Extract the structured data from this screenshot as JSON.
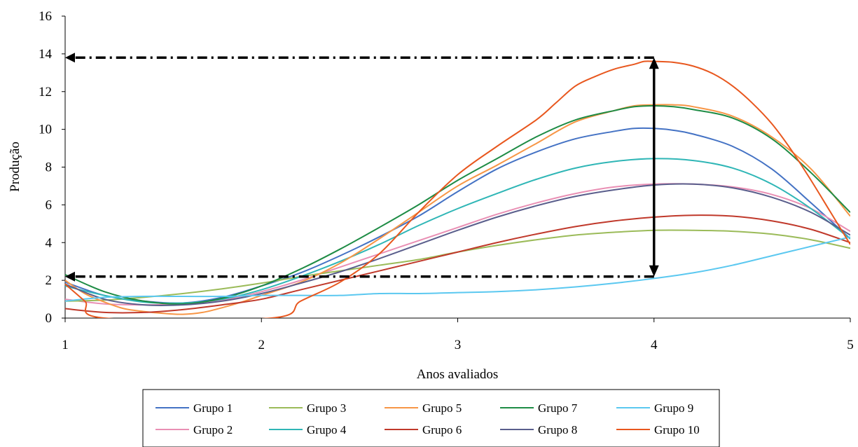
{
  "chart_data": {
    "type": "line",
    "title": "",
    "xlabel": "Anos avaliados",
    "ylabel": "Produção",
    "xlim": [
      1,
      5
    ],
    "ylim": [
      0,
      16
    ],
    "xticks": [
      1,
      2,
      3,
      4,
      5
    ],
    "yticks": [
      0,
      2,
      4,
      6,
      8,
      10,
      12,
      14,
      16
    ],
    "grid": false,
    "legend_position": "bottom",
    "series": [
      {
        "name": "Grupo 1",
        "color": "#4472C4",
        "x": [
          1,
          1.2,
          1.4,
          1.6,
          1.8,
          2,
          2.2,
          2.4,
          2.6,
          2.8,
          3,
          3.2,
          3.4,
          3.6,
          3.8,
          3.9,
          4,
          4.1,
          4.2,
          4.4,
          4.6,
          4.8,
          5
        ],
        "y": [
          1.9,
          1.2,
          0.9,
          0.8,
          1.1,
          1.7,
          2.4,
          3.3,
          4.3,
          5.4,
          6.7,
          7.9,
          8.8,
          9.5,
          9.9,
          10.05,
          10.05,
          9.95,
          9.75,
          9.1,
          7.9,
          6.1,
          4.2
        ]
      },
      {
        "name": "Grupo 2",
        "color": "#E98FB4",
        "x": [
          1,
          1.2,
          1.4,
          1.6,
          1.8,
          2,
          2.2,
          2.4,
          2.6,
          2.8,
          3,
          3.2,
          3.4,
          3.6,
          3.8,
          4,
          4.2,
          4.4,
          4.6,
          4.8,
          5
        ],
        "y": [
          1.0,
          0.75,
          0.7,
          0.75,
          0.95,
          1.4,
          2.0,
          2.7,
          3.4,
          4.1,
          4.8,
          5.5,
          6.1,
          6.6,
          6.95,
          7.1,
          7.1,
          6.95,
          6.55,
          5.8,
          4.6
        ]
      },
      {
        "name": "Grupo 3",
        "color": "#9BBB59",
        "x": [
          1,
          1.2,
          1.4,
          1.6,
          1.8,
          2,
          2.2,
          2.4,
          2.6,
          2.8,
          3,
          3.2,
          3.4,
          3.6,
          3.8,
          4,
          4.2,
          4.4,
          4.6,
          4.8,
          5
        ],
        "y": [
          0.9,
          0.95,
          1.1,
          1.3,
          1.55,
          1.85,
          2.2,
          2.5,
          2.8,
          3.1,
          3.5,
          3.85,
          4.15,
          4.4,
          4.55,
          4.65,
          4.65,
          4.6,
          4.45,
          4.15,
          3.7
        ]
      },
      {
        "name": "Grupo 4",
        "color": "#2FB6B6",
        "x": [
          1,
          1.2,
          1.4,
          1.6,
          1.8,
          2,
          2.2,
          2.4,
          2.6,
          2.8,
          3,
          3.2,
          3.4,
          3.6,
          3.8,
          4,
          4.2,
          4.4,
          4.6,
          4.8,
          5
        ],
        "y": [
          1.7,
          1.2,
          0.85,
          0.8,
          1.0,
          1.5,
          2.2,
          3.0,
          3.9,
          4.9,
          5.8,
          6.6,
          7.35,
          7.95,
          8.3,
          8.45,
          8.35,
          7.95,
          7.1,
          5.8,
          4.2
        ]
      },
      {
        "name": "Grupo 5",
        "color": "#F79646",
        "x": [
          1,
          1.1,
          1.2,
          1.3,
          1.4,
          1.5,
          1.6,
          1.7,
          1.8,
          1.9,
          2,
          2.2,
          2.4,
          2.6,
          2.8,
          3,
          3.2,
          3.4,
          3.6,
          3.8,
          3.9,
          4,
          4.1,
          4.2,
          4.4,
          4.6,
          4.8,
          5
        ],
        "y": [
          2.0,
          1.3,
          0.85,
          0.5,
          0.35,
          0.25,
          0.2,
          0.3,
          0.55,
          0.85,
          1.2,
          1.9,
          2.9,
          4.2,
          5.6,
          7.0,
          8.1,
          9.25,
          10.4,
          11.0,
          11.25,
          11.3,
          11.3,
          11.2,
          10.7,
          9.6,
          7.9,
          5.4
        ]
      },
      {
        "name": "Grupo 6",
        "color": "#C0392B",
        "x": [
          1,
          1.2,
          1.4,
          1.6,
          1.8,
          2,
          2.2,
          2.4,
          2.6,
          2.8,
          3,
          3.2,
          3.4,
          3.6,
          3.8,
          4,
          4.2,
          4.4,
          4.6,
          4.8,
          5
        ],
        "y": [
          0.5,
          0.3,
          0.3,
          0.45,
          0.7,
          1.0,
          1.5,
          2.0,
          2.5,
          3.0,
          3.5,
          4.0,
          4.45,
          4.85,
          5.15,
          5.35,
          5.45,
          5.4,
          5.15,
          4.7,
          4.0
        ]
      },
      {
        "name": "Grupo 7",
        "color": "#1E8C45",
        "x": [
          1,
          1.2,
          1.4,
          1.6,
          1.8,
          2,
          2.2,
          2.4,
          2.6,
          2.8,
          3,
          3.2,
          3.4,
          3.6,
          3.8,
          3.9,
          4,
          4.1,
          4.2,
          4.4,
          4.6,
          4.8,
          5
        ],
        "y": [
          2.3,
          1.4,
          0.9,
          0.75,
          1.05,
          1.7,
          2.6,
          3.65,
          4.8,
          6.0,
          7.3,
          8.45,
          9.6,
          10.5,
          11.0,
          11.2,
          11.25,
          11.2,
          11.05,
          10.6,
          9.5,
          7.7,
          5.6
        ]
      },
      {
        "name": "Grupo 8",
        "color": "#5A5E8C",
        "x": [
          1,
          1.2,
          1.4,
          1.6,
          1.8,
          2,
          2.2,
          2.4,
          2.6,
          2.8,
          3,
          3.2,
          3.4,
          3.6,
          3.8,
          4,
          4.2,
          4.4,
          4.6,
          4.8,
          5
        ],
        "y": [
          1.8,
          1.0,
          0.7,
          0.7,
          0.9,
          1.3,
          1.85,
          2.45,
          3.15,
          3.9,
          4.65,
          5.35,
          5.95,
          6.45,
          6.8,
          7.05,
          7.1,
          6.9,
          6.4,
          5.6,
          4.4
        ]
      },
      {
        "name": "Grupo 9",
        "color": "#5BC8F0",
        "x": [
          1,
          1.2,
          1.4,
          1.6,
          1.8,
          2,
          2.2,
          2.4,
          2.6,
          2.8,
          3,
          3.2,
          3.4,
          3.6,
          3.8,
          4,
          4.2,
          4.4,
          4.6,
          4.8,
          5
        ],
        "y": [
          0.9,
          1.1,
          1.15,
          1.15,
          1.15,
          1.2,
          1.2,
          1.2,
          1.3,
          1.3,
          1.35,
          1.4,
          1.5,
          1.65,
          1.85,
          2.1,
          2.4,
          2.8,
          3.3,
          3.8,
          4.3
        ]
      },
      {
        "name": "Grupo 10",
        "color": "#E8571E",
        "x": [
          1,
          1.1,
          1.2,
          2.05,
          2.2,
          2.4,
          2.6,
          2.8,
          3,
          3.2,
          3.4,
          3.5,
          3.6,
          3.7,
          3.8,
          3.9,
          3.95,
          4,
          4.1,
          4.2,
          4.3,
          4.4,
          4.5,
          4.6,
          4.7,
          4.8,
          4.9,
          5
        ],
        "y": [
          1.8,
          0.9,
          0,
          0,
          0.9,
          1.9,
          3.4,
          5.6,
          7.6,
          9.1,
          10.5,
          11.4,
          12.3,
          12.8,
          13.2,
          13.45,
          13.6,
          13.6,
          13.55,
          13.35,
          12.95,
          12.3,
          11.4,
          10.3,
          8.9,
          7.3,
          5.6,
          3.9
        ]
      }
    ],
    "annotations": [
      {
        "type": "dash-dot-arrow",
        "y": 13.8,
        "from_x": 4,
        "to_x": 1
      },
      {
        "type": "dash-dot-arrow",
        "y": 2.2,
        "from_x": 4,
        "to_x": 1
      },
      {
        "type": "double-arrow",
        "x": 4,
        "y_from": 2.2,
        "y_to": 13.8
      }
    ]
  }
}
